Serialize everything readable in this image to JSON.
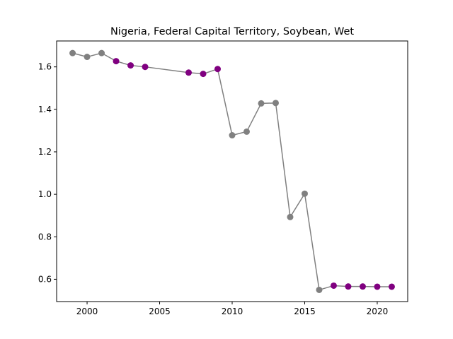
{
  "chart_data": {
    "type": "line",
    "title": "Nigeria, Federal Capital Territory, Soybean, Wet",
    "xlabel": "",
    "ylabel": "",
    "xlim": [
      1997.9,
      2022.1
    ],
    "ylim": [
      0.495,
      1.722
    ],
    "x_ticks": [
      2000,
      2005,
      2010,
      2015,
      2020
    ],
    "y_ticks": [
      0.6,
      0.8,
      1.0,
      1.2,
      1.4,
      1.6
    ],
    "y_tick_labels": [
      "0.6",
      "0.8",
      "1.0",
      "1.2",
      "1.4",
      "1.6"
    ],
    "grid": false,
    "line_color": "#808080",
    "colors": {
      "gray": "#808080",
      "purple": "#800080"
    },
    "points": [
      {
        "x": 1999,
        "y": 1.665,
        "color": "gray"
      },
      {
        "x": 2000,
        "y": 1.647,
        "color": "gray"
      },
      {
        "x": 2001,
        "y": 1.665,
        "color": "gray"
      },
      {
        "x": 2002,
        "y": 1.627,
        "color": "purple"
      },
      {
        "x": 2003,
        "y": 1.607,
        "color": "purple"
      },
      {
        "x": 2004,
        "y": 1.6,
        "color": "purple"
      },
      {
        "x": 2007,
        "y": 1.573,
        "color": "purple"
      },
      {
        "x": 2008,
        "y": 1.567,
        "color": "purple"
      },
      {
        "x": 2009,
        "y": 1.59,
        "color": "purple"
      },
      {
        "x": 2010,
        "y": 1.278,
        "color": "gray"
      },
      {
        "x": 2011,
        "y": 1.295,
        "color": "gray"
      },
      {
        "x": 2012,
        "y": 1.428,
        "color": "gray"
      },
      {
        "x": 2013,
        "y": 1.43,
        "color": "gray"
      },
      {
        "x": 2014,
        "y": 0.893,
        "color": "gray"
      },
      {
        "x": 2015,
        "y": 1.003,
        "color": "gray"
      },
      {
        "x": 2016,
        "y": 0.55,
        "color": "gray"
      },
      {
        "x": 2017,
        "y": 0.57,
        "color": "purple"
      },
      {
        "x": 2018,
        "y": 0.566,
        "color": "purple"
      },
      {
        "x": 2019,
        "y": 0.566,
        "color": "purple"
      },
      {
        "x": 2020,
        "y": 0.565,
        "color": "purple"
      },
      {
        "x": 2021,
        "y": 0.565,
        "color": "purple"
      }
    ]
  }
}
